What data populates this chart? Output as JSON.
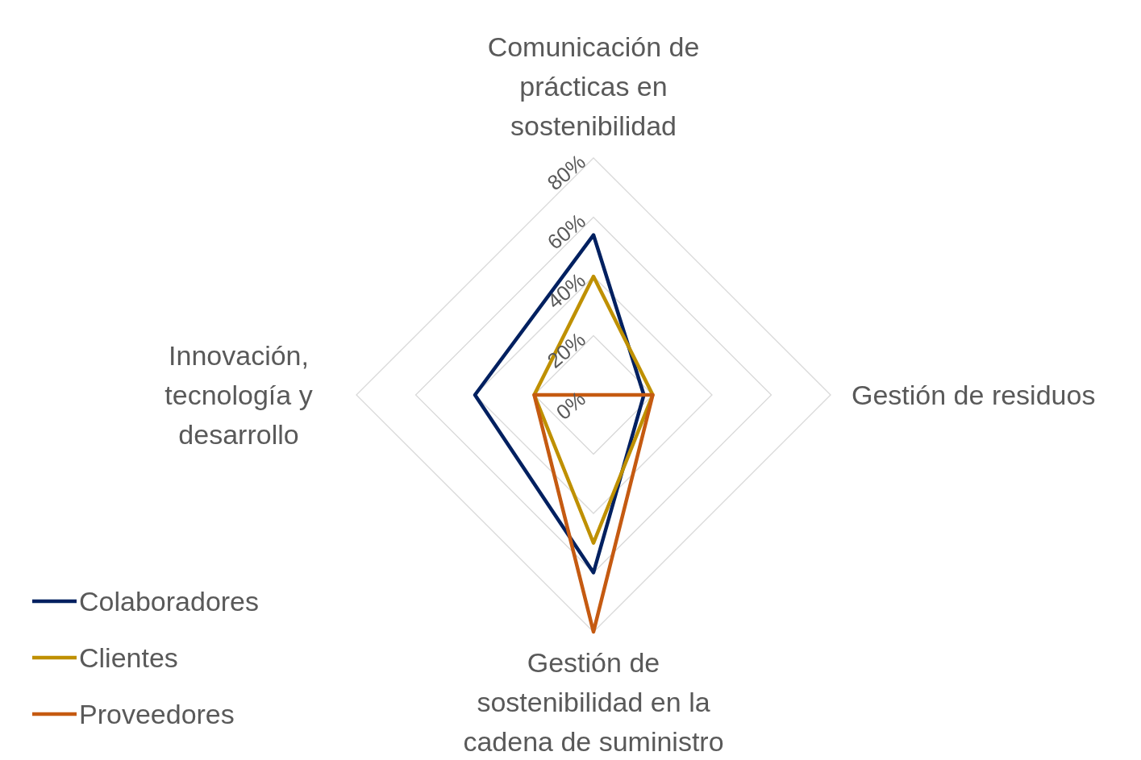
{
  "chart_data": {
    "type": "radar",
    "categories": [
      "Comunicación de prácticas en sostenibilidad",
      "Gestión de residuos",
      "Gestión de sostenibilidad en la cadena de suministro",
      "Innovación, tecnología y desarrollo"
    ],
    "series": [
      {
        "name": "Colaboradores",
        "color": "#002060",
        "values": [
          54,
          17,
          60,
          40
        ]
      },
      {
        "name": "Clientes",
        "color": "#bf9000",
        "values": [
          40,
          20,
          50,
          20
        ]
      },
      {
        "name": "Proveedores",
        "color": "#c55a11",
        "values": [
          0,
          20,
          80,
          20
        ]
      }
    ],
    "ylim": [
      0,
      80
    ],
    "yticks": [
      {
        "value": 0,
        "label": "0%"
      },
      {
        "value": 20,
        "label": "20%"
      },
      {
        "value": 40,
        "label": "40%"
      },
      {
        "value": 60,
        "label": "60%"
      },
      {
        "value": 80,
        "label": "80%"
      }
    ],
    "grid": true,
    "legend": "bottom left"
  }
}
